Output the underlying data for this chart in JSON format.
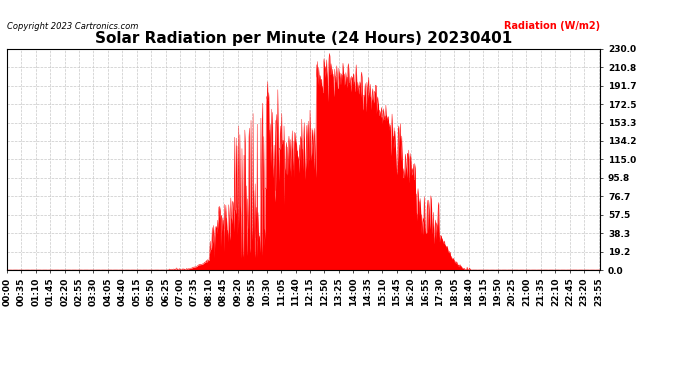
{
  "title": "Solar Radiation per Minute (24 Hours) 20230401",
  "ylabel": "Radiation (W/m2)",
  "copyright_text": "Copyright 2023 Cartronics.com",
  "fill_color": "#ff0000",
  "line_color": "#ff0000",
  "bg_color": "#ffffff",
  "grid_color": "#c8c8c8",
  "dashed_line_color": "#ff0000",
  "yticks": [
    0.0,
    19.2,
    38.3,
    57.5,
    76.7,
    95.8,
    115.0,
    134.2,
    153.3,
    172.5,
    191.7,
    210.8,
    230.0
  ],
  "ymax": 230.0,
  "ymin": 0.0,
  "title_fontsize": 11,
  "tick_fontsize": 6.5
}
